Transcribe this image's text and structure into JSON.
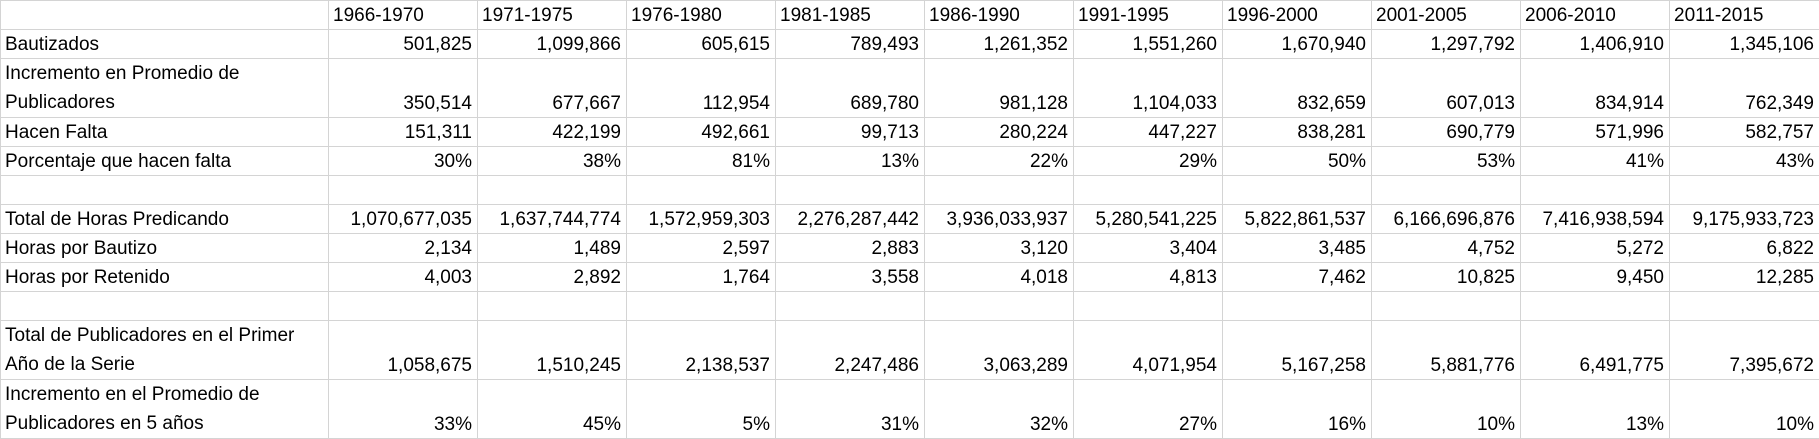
{
  "headers": [
    "",
    "1966-1970",
    "1971-1975",
    "1976-1980",
    "1981-1985",
    "1986-1990",
    "1991-1995",
    "1996-2000",
    "2001-2005",
    "2006-2010",
    "2011-2015"
  ],
  "rows": [
    {
      "label": "Bautizados",
      "values": [
        "501,825",
        "1,099,866",
        "605,615",
        "789,493",
        "1,261,352",
        "1,551,260",
        "1,670,940",
        "1,297,792",
        "1,406,910",
        "1,345,106"
      ]
    },
    {
      "label": "Incremento en Promedio de Publicadores",
      "values": [
        "350,514",
        "677,667",
        "112,954",
        "689,780",
        "981,128",
        "1,104,033",
        "832,659",
        "607,013",
        "834,914",
        "762,349"
      ]
    },
    {
      "label": "Hacen Falta",
      "values": [
        "151,311",
        "422,199",
        "492,661",
        "99,713",
        "280,224",
        "447,227",
        "838,281",
        "690,779",
        "571,996",
        "582,757"
      ]
    },
    {
      "label": "Porcentaje que hacen falta",
      "values": [
        "30%",
        "38%",
        "81%",
        "13%",
        "22%",
        "29%",
        "50%",
        "53%",
        "41%",
        "43%"
      ]
    },
    {
      "label": "Total de Horas Predicando",
      "values": [
        "1,070,677,035",
        "1,637,744,774",
        "1,572,959,303",
        "2,276,287,442",
        "3,936,033,937",
        "5,280,541,225",
        "5,822,861,537",
        "6,166,696,876",
        "7,416,938,594",
        "9,175,933,723"
      ]
    },
    {
      "label": "Horas por Bautizo",
      "values": [
        "2,134",
        "1,489",
        "2,597",
        "2,883",
        "3,120",
        "3,404",
        "3,485",
        "4,752",
        "5,272",
        "6,822"
      ]
    },
    {
      "label": "Horas por Retenido",
      "values": [
        "4,003",
        "2,892",
        "1,764",
        "3,558",
        "4,018",
        "4,813",
        "7,462",
        "10,825",
        "9,450",
        "12,285"
      ]
    },
    {
      "label": "Total de Publicadores en el Primer Año de la Serie",
      "values": [
        "1,058,675",
        "1,510,245",
        "2,138,537",
        "2,247,486",
        "3,063,289",
        "4,071,954",
        "5,167,258",
        "5,881,776",
        "6,491,775",
        "7,395,672"
      ]
    },
    {
      "label": "Incremento en el Promedio de Publicadores en 5 años",
      "values": [
        "33%",
        "45%",
        "5%",
        "31%",
        "32%",
        "27%",
        "16%",
        "10%",
        "13%",
        "10%"
      ]
    }
  ]
}
